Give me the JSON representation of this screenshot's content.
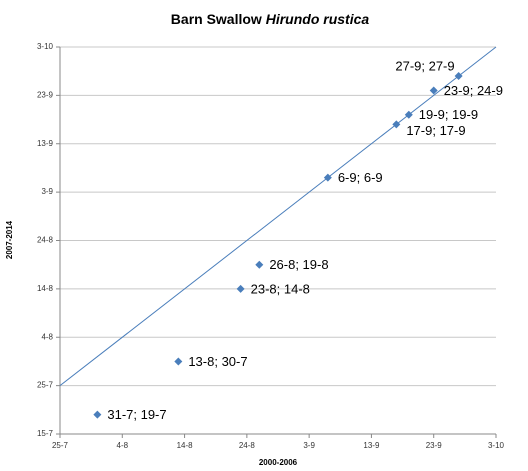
{
  "chart_data": {
    "type": "scatter",
    "title": "Barn Swallow",
    "title_italic": "Hirundo rustica",
    "x_label": "2000-2006",
    "y_label": "2007-2014",
    "x": [
      212,
      225,
      235,
      238,
      249,
      260,
      262,
      266,
      270
    ],
    "series": [
      {
        "color": "#4a7ebb",
        "values": [
          200,
          211,
          226,
          231,
          249,
          260,
          262,
          267,
          270
        ],
        "value_labels": [
          "31-7; 19-7",
          "13-8; 30-7",
          "23-8; 14-8",
          "26-8; 19-8",
          "6-9; 6-9",
          "17-9; 17-9",
          "19-9; 19-9",
          "23-9; 24-9",
          "27-9; 27-9"
        ]
      }
    ],
    "xlim": [
      206,
      276
    ],
    "xticks": [
      {
        "value": 206,
        "label": "25-7"
      },
      {
        "value": 216,
        "label": "4-8"
      },
      {
        "value": 226,
        "label": "14-8"
      },
      {
        "value": 236,
        "label": "24-8"
      },
      {
        "value": 246,
        "label": "3-9"
      },
      {
        "value": 256,
        "label": "13-9"
      },
      {
        "value": 266,
        "label": "23-9"
      },
      {
        "value": 276,
        "label": "3-10"
      }
    ],
    "ylim": [
      196,
      276
    ],
    "yticks": [
      {
        "value": 196,
        "label": "15-7"
      },
      {
        "value": 206,
        "label": "25-7"
      },
      {
        "value": 216,
        "label": "4-8"
      },
      {
        "value": 226,
        "label": "14-8"
      },
      {
        "value": 236,
        "label": "24-8"
      },
      {
        "value": 246,
        "label": "3-9"
      },
      {
        "value": 256,
        "label": "13-9"
      },
      {
        "value": 266,
        "label": "23-9"
      },
      {
        "value": 276,
        "label": "3-10"
      }
    ],
    "grid": true,
    "line_color": "#4a7ebb"
  }
}
